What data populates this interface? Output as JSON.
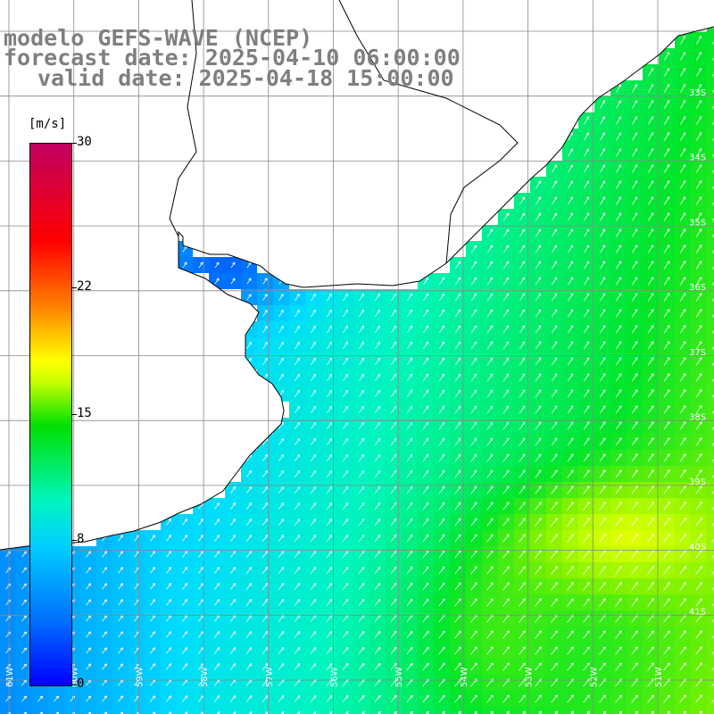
{
  "header": {
    "line1": "modelo GEFS-WAVE (NCEP)",
    "line2": "forecast date: 2025-04-10 06:00:00",
    "line3": "valid date: 2025-04-18 15:00:00"
  },
  "colorbar": {
    "unit": "[m/s]",
    "ticks": [
      "30",
      "22",
      "15",
      "8",
      "0"
    ],
    "tick_values": [
      30,
      22,
      15,
      8,
      0
    ],
    "range": [
      0,
      30
    ]
  },
  "map": {
    "lat_labels": [
      "33S",
      "34S",
      "35S",
      "36S",
      "37S",
      "38S",
      "39S",
      "40S",
      "41S"
    ],
    "lon_labels": [
      "61W",
      "60W",
      "59W",
      "58W",
      "57W",
      "56W",
      "55W",
      "54W",
      "53W",
      "52W",
      "51W"
    ],
    "colors": {
      "land": "#ffffff",
      "coast": "#000000",
      "grid": "#888888"
    }
  }
}
